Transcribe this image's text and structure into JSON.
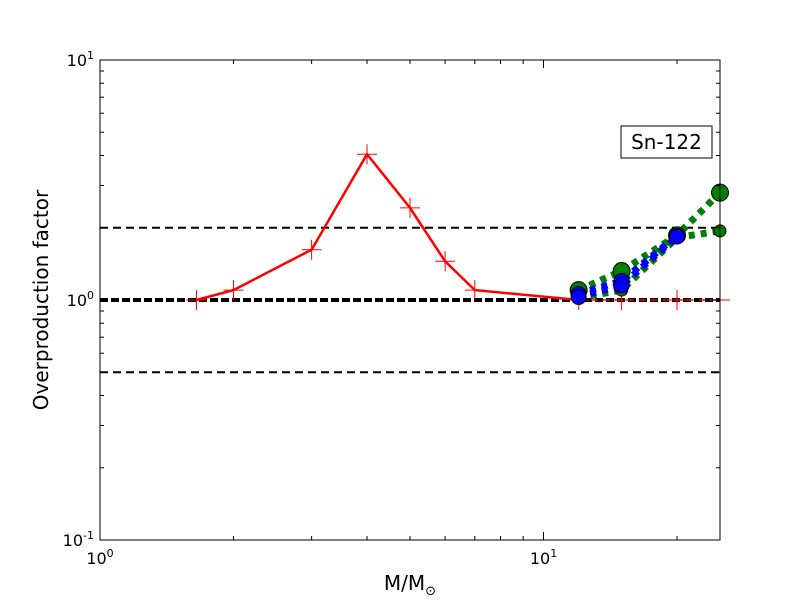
{
  "chart_data": {
    "type": "line",
    "title": "",
    "xlabel": "M/M",
    "xlabel_subscript": "⊙",
    "ylabel": "Overproduction factor",
    "x_scale": "log",
    "y_scale": "log",
    "xlim": [
      1,
      25
    ],
    "ylim": [
      0.1,
      10
    ],
    "grid": false,
    "annotation": "Sn-122",
    "annotation_placement": "top-right",
    "x_ticks": [
      {
        "value": 1,
        "base": "10",
        "exp": "0"
      },
      {
        "value": 10,
        "base": "10",
        "exp": "1"
      }
    ],
    "y_ticks": [
      {
        "value": 0.1,
        "base": "10",
        "exp": "-1"
      },
      {
        "value": 1,
        "base": "10",
        "exp": "0"
      },
      {
        "value": 10,
        "base": "10",
        "exp": "1"
      }
    ],
    "reference_lines": [
      {
        "y": 2.0,
        "style": "dashed",
        "color": "#000000"
      },
      {
        "y": 1.0,
        "style": "dashed-bold",
        "color": "#000000"
      },
      {
        "y": 0.5,
        "style": "dashed",
        "color": "#000000"
      }
    ],
    "series": [
      {
        "style": "solid",
        "color": "#ff0000",
        "marker": "plus",
        "x": [
          1.65,
          2.0,
          3.0,
          4.0,
          5.0,
          6.0,
          7.0,
          12.0,
          15.0,
          20.0,
          25.0
        ],
        "y": [
          1.0,
          1.1,
          1.62,
          4.05,
          2.42,
          1.45,
          1.1,
          1.0,
          1.0,
          1.0,
          1.0
        ],
        "hidden_segment_after_index": 7
      },
      {
        "style": "dotted",
        "color": "#008000",
        "marker": "circle",
        "x": [
          12.0,
          15.0,
          20.0,
          25.0
        ],
        "y": [
          1.1,
          1.32,
          1.86,
          2.8
        ]
      },
      {
        "style": "dotted",
        "color": "#008000",
        "marker": "circle",
        "x": [
          12.0,
          15.0,
          20.0,
          25.0
        ],
        "y": [
          1.02,
          1.1,
          1.82,
          1.94
        ]
      },
      {
        "style": "dotted",
        "color": "#0000ff",
        "marker": "circle",
        "x": [
          12.0,
          15.0,
          20.0
        ],
        "y": [
          1.06,
          1.2,
          1.85
        ]
      },
      {
        "style": "dotted",
        "color": "#0000ff",
        "marker": "circle",
        "x": [
          12.0,
          15.0,
          20.0
        ],
        "y": [
          1.03,
          1.15,
          1.84
        ]
      }
    ]
  }
}
